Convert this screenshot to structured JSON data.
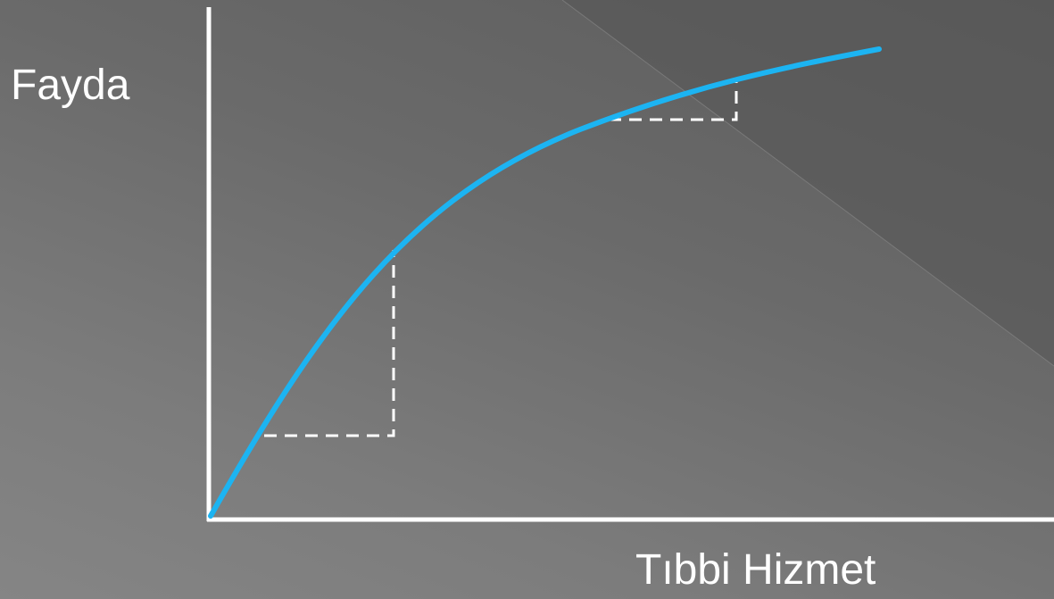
{
  "y_axis_label": "Fayda",
  "x_axis_label": "Tıbbi Hizmet",
  "colors": {
    "curve": "#1cb4f2",
    "axes": "#ffffff",
    "guides": "#ffffff",
    "background_dark": "#5a5a5a",
    "background_light": "#858585"
  }
}
